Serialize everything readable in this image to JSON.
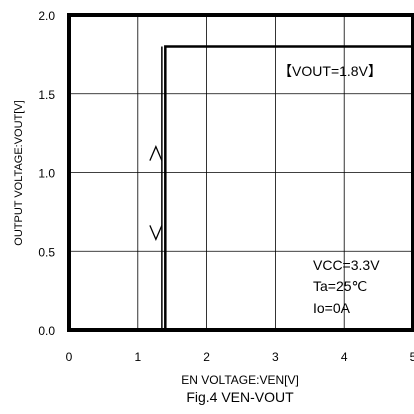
{
  "chart_data": {
    "type": "line",
    "title": "",
    "caption": "Fig.4 VEN-VOUT",
    "xlabel": "EN VOLTAGE:VEN[V]",
    "ylabel": "OUTPUT VOLTAGE:VOUT[V]",
    "xlim": [
      0,
      5
    ],
    "ylim": [
      0.0,
      2.0
    ],
    "x_ticks": [
      "0",
      "1",
      "2",
      "3",
      "4",
      "5"
    ],
    "y_ticks": [
      "0.0",
      "0.5",
      "1.0",
      "1.5",
      "2.0"
    ],
    "grid": true,
    "series": [
      {
        "x": [
          0,
          1.4,
          1.4,
          1.4,
          1.4,
          5
        ],
        "y": [
          0.0,
          0.0,
          0.0,
          1.8,
          1.8,
          1.8
        ]
      }
    ],
    "step_x": 1.4,
    "hysteresis_x": 1.35,
    "arrows": [
      {
        "symbol": "^",
        "x": 1.35,
        "y": 1.12
      },
      {
        "symbol": "v",
        "x": 1.35,
        "y": 0.62
      }
    ],
    "annotations": {
      "vout_label": "【VOUT=1.8V】",
      "conditions": [
        "VCC=3.3V",
        "Ta=25℃",
        "Io=0A"
      ]
    },
    "colors": {
      "line": "#000000",
      "grid": "#000000",
      "background": "#ffffff"
    }
  }
}
